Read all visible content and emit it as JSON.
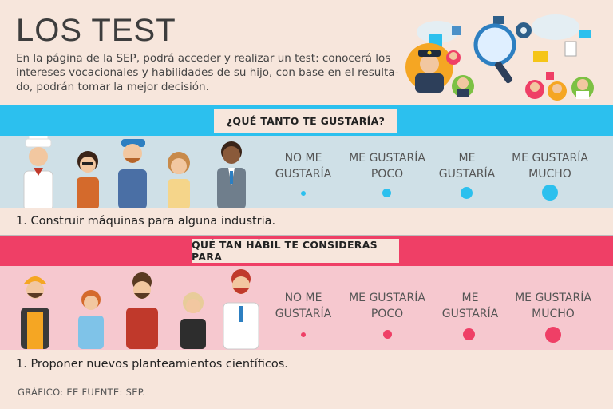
{
  "header": {
    "title": "LOS TEST",
    "intro": "En la página de la SEP, podrá acceder y realizar un test: conocerá los intereses vocacionales y habilidades de su hijo, con base en el resulta-do, podrán tomar la mejor decisión."
  },
  "section1": {
    "heading": "¿QUÉ TANTO TE GUSTARÍA?",
    "accent": "#2cc0ee",
    "options": [
      {
        "line1": "NO ME",
        "line2": "GUSTARÍA"
      },
      {
        "line1": "ME GUSTARÍA",
        "line2": "POCO"
      },
      {
        "line1": "ME",
        "line2": "GUSTARÍA"
      },
      {
        "line1": "ME GUSTARÍA",
        "line2": "MUCHO"
      }
    ],
    "question": "1. Construir máquinas para alguna industria."
  },
  "section2": {
    "heading": "QUÉ TAN HÁBIL TE CONSIDERAS PARA",
    "accent": "#ef3f66",
    "options": [
      {
        "line1": "NO ME",
        "line2": "GUSTARÍA"
      },
      {
        "line1": "ME GUSTARÍA",
        "line2": "POCO"
      },
      {
        "line1": "ME",
        "line2": "GUSTARÍA"
      },
      {
        "line1": "ME GUSTARÍA",
        "line2": "MUCHO"
      }
    ],
    "question": "1. Proponer nuevos planteamientos científicos."
  },
  "footer": {
    "credit": "GRÁFICO: EE  FUENTE: SEP."
  },
  "icons": [
    "police-icon",
    "magnifier-icon",
    "gear-icon",
    "cloud-icon",
    "chef-icon",
    "worker-icon",
    "scientist-icon"
  ]
}
